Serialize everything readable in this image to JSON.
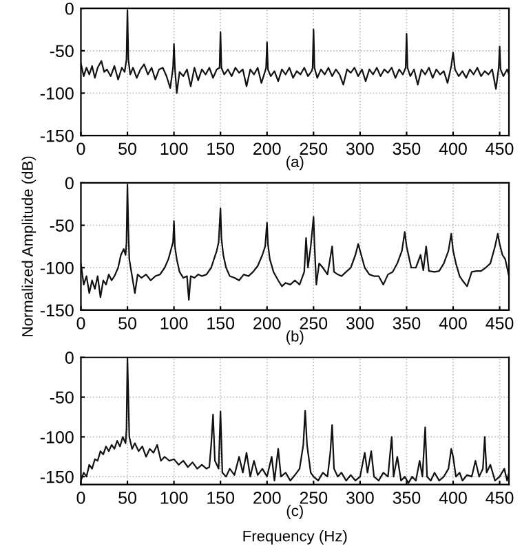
{
  "chart_data": [
    {
      "type": "line",
      "annotations": [
        "(a)"
      ],
      "xlim": [
        0,
        460
      ],
      "ylim": [
        -150,
        0
      ],
      "xticks": [
        0,
        50,
        100,
        150,
        200,
        250,
        300,
        350,
        400,
        450
      ],
      "yticks": [
        -150,
        -100,
        -50,
        0
      ],
      "grid": true,
      "line_style": "solid",
      "series": [
        {
          "color": "#111111",
          "x": [
            0,
            3,
            6,
            9,
            12,
            15,
            18,
            22,
            25,
            28,
            32,
            36,
            40,
            44,
            47,
            49,
            50,
            51,
            53,
            56,
            60,
            64,
            68,
            72,
            76,
            80,
            84,
            88,
            92,
            96,
            99,
            100,
            101,
            103,
            106,
            110,
            114,
            118,
            122,
            126,
            130,
            134,
            138,
            142,
            146,
            149,
            150,
            151,
            154,
            158,
            162,
            166,
            170,
            174,
            178,
            182,
            186,
            190,
            194,
            198,
            199,
            200,
            201,
            204,
            208,
            212,
            216,
            220,
            224,
            228,
            232,
            236,
            240,
            244,
            248,
            249,
            250,
            251,
            254,
            258,
            262,
            266,
            270,
            274,
            278,
            282,
            286,
            290,
            294,
            298,
            302,
            306,
            310,
            314,
            318,
            322,
            326,
            330,
            334,
            338,
            342,
            346,
            349,
            350,
            351,
            354,
            358,
            362,
            366,
            370,
            374,
            378,
            382,
            386,
            390,
            394,
            398,
            400,
            402,
            406,
            410,
            414,
            418,
            422,
            426,
            430,
            434,
            438,
            442,
            446,
            449,
            450,
            451,
            454,
            458,
            460
          ],
          "values": [
            -65,
            -80,
            -70,
            -78,
            -68,
            -82,
            -70,
            -62,
            -75,
            -72,
            -80,
            -68,
            -84,
            -70,
            -75,
            -60,
            -2,
            -60,
            -78,
            -70,
            -82,
            -72,
            -66,
            -78,
            -70,
            -84,
            -72,
            -70,
            -80,
            -94,
            -70,
            -42,
            -70,
            -100,
            -75,
            -80,
            -72,
            -92,
            -70,
            -85,
            -72,
            -78,
            -70,
            -82,
            -72,
            -70,
            -28,
            -70,
            -78,
            -72,
            -80,
            -70,
            -76,
            -72,
            -92,
            -72,
            -78,
            -70,
            -88,
            -74,
            -70,
            -40,
            -72,
            -80,
            -74,
            -86,
            -72,
            -78,
            -70,
            -82,
            -74,
            -78,
            -70,
            -80,
            -74,
            -70,
            -25,
            -70,
            -82,
            -72,
            -78,
            -70,
            -80,
            -72,
            -78,
            -90,
            -72,
            -76,
            -70,
            -80,
            -72,
            -86,
            -72,
            -78,
            -70,
            -80,
            -72,
            -76,
            -70,
            -82,
            -72,
            -78,
            -70,
            -30,
            -70,
            -80,
            -72,
            -90,
            -72,
            -78,
            -70,
            -82,
            -72,
            -78,
            -74,
            -88,
            -68,
            -52,
            -72,
            -80,
            -74,
            -82,
            -72,
            -78,
            -70,
            -80,
            -74,
            -78,
            -72,
            -95,
            -70,
            -45,
            -72,
            -80,
            -72,
            -78
          ]
        }
      ]
    },
    {
      "type": "line",
      "annotations": [
        "(b)"
      ],
      "ylabel": "Normalized Amplitude (dB)",
      "xlim": [
        0,
        460
      ],
      "ylim": [
        -150,
        0
      ],
      "xticks": [
        0,
        50,
        100,
        150,
        200,
        250,
        300,
        350,
        400,
        450
      ],
      "yticks": [
        -150,
        -100,
        -50,
        0
      ],
      "grid": true,
      "line_style": "solid",
      "series": [
        {
          "color": "#111111",
          "x": [
            0,
            3,
            6,
            9,
            12,
            15,
            18,
            21,
            24,
            27,
            30,
            33,
            36,
            40,
            43,
            46,
            48,
            49,
            50,
            51,
            52,
            55,
            58,
            61,
            65,
            70,
            75,
            80,
            85,
            90,
            94,
            97,
            99,
            100,
            101,
            103,
            106,
            110,
            114,
            116,
            118,
            122,
            126,
            130,
            135,
            140,
            143,
            146,
            148,
            150,
            151,
            153,
            156,
            160,
            165,
            170,
            175,
            180,
            185,
            190,
            195,
            198,
            200,
            201,
            203,
            207,
            212,
            216,
            220,
            225,
            230,
            235,
            240,
            242,
            244,
            247,
            250,
            251,
            253,
            256,
            260,
            265,
            270,
            272,
            276,
            280,
            285,
            290,
            295,
            298,
            300,
            302,
            305,
            310,
            315,
            320,
            325,
            330,
            335,
            340,
            345,
            348,
            350,
            352,
            355,
            360,
            365,
            368,
            371,
            374,
            380,
            385,
            390,
            395,
            398,
            400,
            403,
            407,
            410,
            415,
            420,
            425,
            430,
            435,
            440,
            445,
            448,
            450,
            453,
            456,
            460
          ],
          "values": [
            -95,
            -120,
            -110,
            -130,
            -115,
            -125,
            -110,
            -135,
            -115,
            -120,
            -108,
            -115,
            -110,
            -100,
            -85,
            -78,
            -85,
            -70,
            -2,
            -55,
            -90,
            -110,
            -130,
            -108,
            -112,
            -108,
            -115,
            -110,
            -108,
            -100,
            -90,
            -78,
            -70,
            -45,
            -75,
            -90,
            -105,
            -112,
            -110,
            -138,
            -110,
            -112,
            -108,
            -110,
            -108,
            -100,
            -90,
            -80,
            -70,
            -30,
            -65,
            -85,
            -100,
            -110,
            -112,
            -115,
            -108,
            -110,
            -105,
            -98,
            -85,
            -75,
            -47,
            -72,
            -90,
            -105,
            -115,
            -122,
            -118,
            -120,
            -115,
            -120,
            -105,
            -65,
            -100,
            -75,
            -40,
            -72,
            -120,
            -95,
            -100,
            -108,
            -75,
            -105,
            -108,
            -110,
            -105,
            -100,
            -85,
            -72,
            -80,
            -88,
            -100,
            -108,
            -110,
            -110,
            -120,
            -108,
            -105,
            -95,
            -80,
            -58,
            -75,
            -85,
            -100,
            -100,
            -85,
            -103,
            -75,
            -104,
            -105,
            -104,
            -95,
            -80,
            -60,
            -80,
            -95,
            -110,
            -115,
            -122,
            -105,
            -104,
            -104,
            -100,
            -95,
            -75,
            -60,
            -72,
            -85,
            -90,
            -110
          ]
        }
      ]
    },
    {
      "type": "line",
      "annotations": [
        "(c)"
      ],
      "xlabel": "Frequency (Hz)",
      "xlim": [
        0,
        460
      ],
      "ylim": [
        -160,
        0
      ],
      "xticks": [
        0,
        50,
        100,
        150,
        200,
        250,
        300,
        350,
        400,
        450
      ],
      "yticks": [
        -150,
        -100,
        -50,
        0
      ],
      "grid": true,
      "line_style": "solid",
      "series": [
        {
          "color": "#111111",
          "x": [
            0,
            3,
            6,
            9,
            12,
            15,
            18,
            21,
            24,
            27,
            30,
            33,
            36,
            39,
            42,
            45,
            48,
            49,
            50,
            51,
            52,
            55,
            58,
            62,
            66,
            70,
            74,
            78,
            82,
            86,
            90,
            95,
            100,
            105,
            110,
            115,
            120,
            125,
            130,
            135,
            138,
            140,
            142,
            144,
            148,
            150,
            152,
            156,
            160,
            165,
            170,
            174,
            178,
            182,
            186,
            190,
            195,
            200,
            205,
            208,
            212,
            215,
            220,
            225,
            230,
            235,
            239,
            241,
            243,
            247,
            250,
            255,
            260,
            265,
            268,
            270,
            272,
            276,
            280,
            285,
            290,
            295,
            300,
            305,
            308,
            312,
            315,
            320,
            325,
            330,
            334,
            336,
            340,
            344,
            348,
            352,
            356,
            360,
            364,
            367,
            370,
            372,
            376,
            380,
            385,
            390,
            395,
            398,
            400,
            403,
            407,
            410,
            415,
            420,
            424,
            428,
            432,
            434,
            436,
            440,
            445,
            450,
            455,
            458,
            460
          ],
          "values": [
            -155,
            -145,
            -150,
            -135,
            -140,
            -128,
            -130,
            -118,
            -122,
            -112,
            -118,
            -110,
            -115,
            -105,
            -112,
            -100,
            -108,
            -90,
            -1,
            -50,
            -100,
            -115,
            -108,
            -118,
            -112,
            -125,
            -115,
            -120,
            -110,
            -130,
            -125,
            -130,
            -128,
            -135,
            -130,
            -138,
            -132,
            -140,
            -135,
            -140,
            -138,
            -110,
            -72,
            -130,
            -140,
            -68,
            -145,
            -150,
            -140,
            -148,
            -125,
            -145,
            -120,
            -150,
            -130,
            -148,
            -140,
            -150,
            -125,
            -155,
            -115,
            -150,
            -145,
            -155,
            -148,
            -140,
            -110,
            -67,
            -110,
            -145,
            -150,
            -155,
            -145,
            -150,
            -120,
            -85,
            -140,
            -150,
            -145,
            -155,
            -148,
            -155,
            -150,
            -120,
            -145,
            -118,
            -150,
            -155,
            -145,
            -150,
            -100,
            -150,
            -125,
            -155,
            -150,
            -158,
            -150,
            -155,
            -130,
            -150,
            -88,
            -150,
            -155,
            -145,
            -155,
            -150,
            -140,
            -115,
            -125,
            -150,
            -145,
            -155,
            -148,
            -150,
            -130,
            -150,
            -140,
            -100,
            -145,
            -135,
            -155,
            -150,
            -140,
            -155,
            -145
          ]
        }
      ]
    }
  ]
}
